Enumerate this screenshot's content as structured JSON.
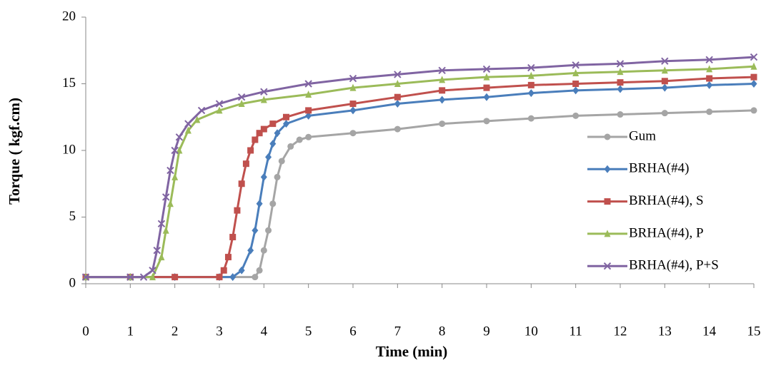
{
  "chart_data": {
    "type": "line",
    "xlabel": "Time (min)",
    "ylabel": "Torque ( kgf.cm)",
    "xlim": [
      0,
      15
    ],
    "xticks": [
      0,
      1,
      2,
      3,
      4,
      5,
      6,
      7,
      8,
      9,
      10,
      11,
      12,
      13,
      14,
      15
    ],
    "ylim": [
      0,
      20
    ],
    "yticks": [
      0,
      5,
      10,
      15,
      20
    ],
    "grid": false,
    "legend": "right",
    "series": [
      {
        "name": "Gum",
        "color": "#a5a5a5",
        "marker": "circle",
        "x": [
          0,
          1,
          2,
          3,
          3.8,
          3.9,
          4.0,
          4.1,
          4.2,
          4.3,
          4.4,
          4.6,
          4.8,
          5,
          6,
          7,
          8,
          9,
          10,
          11,
          12,
          13,
          14,
          15
        ],
        "values": [
          0.5,
          0.5,
          0.5,
          0.5,
          0.5,
          1,
          2.5,
          4,
          6,
          8,
          9.2,
          10.3,
          10.8,
          11,
          11.3,
          11.6,
          12,
          12.2,
          12.4,
          12.6,
          12.7,
          12.8,
          12.9,
          13
        ]
      },
      {
        "name": "BRHA(#4)",
        "color": "#4a7ebb",
        "marker": "diamond",
        "x": [
          0,
          1,
          2,
          3,
          3.3,
          3.5,
          3.7,
          3.8,
          3.9,
          4.0,
          4.1,
          4.2,
          4.3,
          4.5,
          5,
          6,
          7,
          8,
          9,
          10,
          11,
          12,
          13,
          14,
          15
        ],
        "values": [
          0.5,
          0.5,
          0.5,
          0.5,
          0.5,
          1,
          2.5,
          4,
          6,
          8,
          9.5,
          10.5,
          11.3,
          12,
          12.6,
          13,
          13.5,
          13.8,
          14,
          14.3,
          14.5,
          14.6,
          14.7,
          14.9,
          15
        ]
      },
      {
        "name": "BRHA(#4), S",
        "color": "#c0504d",
        "marker": "square",
        "x": [
          0,
          1,
          2,
          3,
          3.1,
          3.2,
          3.3,
          3.4,
          3.5,
          3.6,
          3.7,
          3.8,
          3.9,
          4.0,
          4.2,
          4.5,
          5,
          6,
          7,
          8,
          9,
          10,
          11,
          12,
          13,
          14,
          15
        ],
        "values": [
          0.5,
          0.5,
          0.5,
          0.5,
          1,
          2,
          3.5,
          5.5,
          7.5,
          9,
          10,
          10.8,
          11.3,
          11.6,
          12,
          12.5,
          13,
          13.5,
          14,
          14.5,
          14.7,
          14.9,
          15,
          15.1,
          15.2,
          15.4,
          15.5
        ]
      },
      {
        "name": "BRHA(#4), P",
        "color": "#9bbb59",
        "marker": "triangle",
        "x": [
          0,
          1,
          1.5,
          1.7,
          1.8,
          1.9,
          2.0,
          2.1,
          2.3,
          2.5,
          3,
          3.5,
          4,
          5,
          6,
          7,
          8,
          9,
          10,
          11,
          12,
          13,
          14,
          15
        ],
        "values": [
          0.5,
          0.5,
          0.5,
          2,
          4,
          6,
          8,
          10,
          11.5,
          12.3,
          13,
          13.5,
          13.8,
          14.2,
          14.7,
          15,
          15.3,
          15.5,
          15.6,
          15.8,
          15.9,
          16,
          16.1,
          16.3
        ]
      },
      {
        "name": "BRHA(#4), P+S",
        "color": "#8064a2",
        "marker": "x",
        "x": [
          0,
          1,
          1.3,
          1.5,
          1.6,
          1.7,
          1.8,
          1.9,
          2.0,
          2.1,
          2.3,
          2.6,
          3,
          3.5,
          4,
          5,
          6,
          7,
          8,
          9,
          10,
          11,
          12,
          13,
          14,
          15
        ],
        "values": [
          0.5,
          0.5,
          0.5,
          1,
          2.5,
          4.5,
          6.5,
          8.5,
          10,
          11,
          12,
          13,
          13.5,
          14,
          14.4,
          15,
          15.4,
          15.7,
          16,
          16.1,
          16.2,
          16.4,
          16.5,
          16.7,
          16.8,
          17
        ]
      }
    ]
  }
}
